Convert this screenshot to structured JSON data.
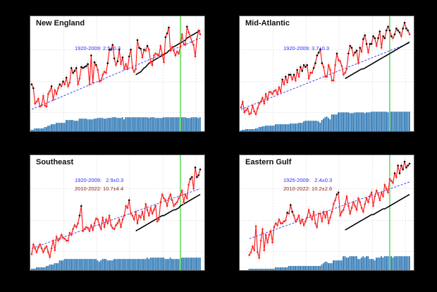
{
  "figure": {
    "background": "#000000",
    "colors": {
      "observed": "#ff2020",
      "observed_marker_highlight": "#000000",
      "trend": "#4444ff",
      "model": "#000000",
      "bars": "#2e78b5",
      "marker_2010": "#55dd55",
      "grid": "#d9d9d9"
    }
  },
  "chart_data": [
    {
      "type": "line",
      "title": "New England",
      "annotations": [
        {
          "text": "1920-2009: 2.5±0.3",
          "color": "#2b2bff"
        }
      ],
      "x_range": [
        1920,
        2022
      ],
      "vline_year": 2010,
      "grid": true,
      "series": [
        {
          "name": "observed",
          "start_year": 1920,
          "values": [
            40,
            36,
            20,
            22,
            25,
            17,
            18,
            28,
            18,
            17,
            30,
            33,
            38,
            24,
            34,
            30,
            36,
            40,
            38,
            43,
            40,
            47,
            38,
            42,
            57,
            52,
            54,
            57,
            40,
            46,
            58,
            57,
            58,
            59,
            61,
            40,
            70,
            42,
            63,
            60,
            55,
            43,
            44,
            50,
            53,
            52,
            62,
            76,
            76,
            81,
            67,
            60,
            64,
            76,
            61,
            68,
            56,
            61,
            56,
            69,
            76,
            57,
            53,
            56,
            86,
            78,
            77,
            68,
            76,
            75,
            80,
            76,
            63,
            60,
            70,
            72,
            71,
            70,
            80,
            71,
            63,
            89,
            93,
            99,
            75,
            79,
            75,
            70,
            74,
            72,
            79,
            92,
            82,
            81,
            100,
            94,
            90,
            84,
            81,
            69,
            87,
            96,
            92
          ]
        },
        {
          "name": "model",
          "start_year": 1983,
          "values": [
            50,
            51,
            52,
            53,
            55,
            57,
            58,
            60,
            62,
            63,
            64,
            65,
            66,
            67,
            68,
            69,
            70,
            71,
            72,
            73,
            75,
            76,
            78,
            79,
            80,
            81,
            82,
            83,
            84,
            85,
            86,
            88,
            89,
            90,
            91,
            92,
            93,
            94,
            95,
            96
          ]
        },
        {
          "name": "trend",
          "x": [
            1920,
            2022
          ],
          "y": [
            14,
            88
          ]
        },
        {
          "name": "count_bars",
          "start_year": 1920,
          "values": [
            2,
            2,
            4,
            4,
            4,
            4,
            4,
            4,
            6,
            6,
            8,
            8,
            10,
            10,
            10,
            12,
            12,
            12,
            12,
            12,
            12,
            16,
            16,
            16,
            16,
            16,
            15,
            15,
            15,
            18,
            18,
            18,
            18,
            18,
            17,
            17,
            17,
            17,
            18,
            18,
            19,
            19,
            19,
            19,
            18,
            18,
            19,
            19,
            19,
            20,
            20,
            20,
            19,
            19,
            19,
            20,
            17,
            20,
            20,
            20,
            20,
            20,
            20,
            20,
            20,
            20,
            20,
            20,
            20,
            20,
            20,
            19,
            20,
            20,
            20,
            19,
            19,
            19,
            19,
            19,
            20,
            20,
            20,
            20,
            20,
            20,
            20,
            20,
            20,
            20,
            20,
            20,
            20,
            20,
            19,
            19,
            19,
            20,
            20,
            20,
            20,
            19,
            20
          ]
        }
      ]
    },
    {
      "type": "line",
      "title": "Mid-Atlantic",
      "annotations": [
        {
          "text": "1920-2009: 3.7±0.3",
          "color": "#2b2bff"
        }
      ],
      "x_range": [
        1920,
        2022
      ],
      "vline_year": 2010,
      "grid": true,
      "series": [
        {
          "name": "observed",
          "start_year": 1920,
          "values": [
            16,
            22,
            11,
            13,
            15,
            9,
            10,
            18,
            12,
            9,
            15,
            20,
            22,
            26,
            20,
            30,
            24,
            32,
            32,
            30,
            33,
            34,
            30,
            37,
            32,
            45,
            40,
            48,
            42,
            50,
            50,
            45,
            50,
            44,
            55,
            48,
            58,
            54,
            60,
            58,
            60,
            46,
            52,
            52,
            57,
            62,
            70,
            73,
            76,
            62,
            58,
            48,
            48,
            60,
            55,
            44,
            44,
            60,
            72,
            65,
            64,
            59,
            50,
            52,
            56,
            72,
            80,
            78,
            70,
            73,
            75,
            62,
            78,
            74,
            87,
            91,
            82,
            73,
            82,
            82,
            90,
            88,
            80,
            88,
            95,
            78,
            90,
            88,
            96,
            100,
            96,
            90,
            88,
            92,
            98,
            96,
            94,
            90,
            98,
            104,
            98,
            96,
            92
          ]
        },
        {
          "name": "model",
          "start_year": 1983,
          "values": [
            46,
            47,
            48,
            49,
            50,
            51,
            52,
            53,
            54,
            55,
            56,
            56,
            57,
            58,
            59,
            60,
            61,
            62,
            63,
            64,
            65,
            66,
            67,
            68,
            69,
            70,
            71,
            72,
            73,
            74,
            75,
            76,
            77,
            78,
            79,
            80,
            81,
            82,
            83,
            84
          ]
        },
        {
          "name": "trend",
          "x": [
            1920,
            2022
          ],
          "y": [
            14,
            83
          ]
        },
        {
          "name": "count_bars",
          "start_year": 1920,
          "values": [
            1,
            2,
            2,
            3,
            3,
            3,
            3,
            3,
            3,
            4,
            4,
            6,
            6,
            7,
            7,
            8,
            8,
            8,
            8,
            8,
            8,
            10,
            10,
            10,
            10,
            10,
            10,
            10,
            10,
            10,
            11,
            11,
            11,
            11,
            11,
            12,
            12,
            12,
            14,
            15,
            15,
            15,
            15,
            15,
            15,
            15,
            15,
            14,
            12,
            16,
            18,
            20,
            21,
            19,
            17,
            24,
            24,
            24,
            24,
            27,
            27,
            27,
            27,
            27,
            27,
            27,
            26,
            26,
            26,
            27,
            27,
            27,
            27,
            27,
            27,
            26,
            27,
            27,
            27,
            28,
            28,
            28,
            28,
            28,
            28,
            28,
            28,
            28,
            28,
            27,
            28,
            28,
            28,
            28,
            28,
            28,
            28,
            28,
            28,
            28,
            28,
            28,
            28
          ]
        }
      ]
    },
    {
      "type": "line",
      "title": "Southeast",
      "annotations": [
        {
          "text": "1920-2009:   2.9±0.3",
          "color": "#2b2bff"
        },
        {
          "text": "2010-2022: 10.7±4.4",
          "color": "#8b1a1a"
        }
      ],
      "x_range": [
        1920,
        2022
      ],
      "vline_year": 2010,
      "grid": true,
      "series": [
        {
          "name": "observed",
          "start_year": 1920,
          "values": [
            8,
            18,
            14,
            10,
            15,
            18,
            14,
            10,
            14,
            16,
            10,
            5,
            14,
            22,
            12,
            26,
            22,
            24,
            28,
            25,
            24,
            22,
            22,
            30,
            28,
            34,
            38,
            36,
            40,
            48,
            58,
            32,
            34,
            36,
            35,
            32,
            38,
            33,
            40,
            45,
            44,
            38,
            34,
            46,
            36,
            44,
            40,
            48,
            38,
            35,
            34,
            38,
            40,
            44,
            36,
            44,
            48,
            58,
            56,
            64,
            50,
            48,
            44,
            52,
            40,
            48,
            46,
            52,
            44,
            60,
            54,
            48,
            56,
            50,
            54,
            58,
            42,
            44,
            62,
            70,
            66,
            64,
            58,
            66,
            70,
            64,
            58,
            60,
            62,
            66,
            69,
            74,
            62,
            70,
            66,
            80,
            86,
            88,
            76,
            98,
            88,
            90,
            96
          ]
        },
        {
          "name": "model",
          "start_year": 1983,
          "values": [
            32,
            33,
            34,
            35,
            36,
            37,
            38,
            39,
            40,
            41,
            42,
            43,
            44,
            45,
            46,
            47,
            48,
            48,
            49,
            50,
            51,
            52,
            53,
            54,
            54,
            55,
            56,
            58,
            59,
            60,
            61,
            62,
            63,
            64,
            65,
            66,
            67,
            68,
            69,
            70
          ]
        },
        {
          "name": "trend",
          "x": [
            1920,
            2022
          ],
          "y": [
            14,
            76
          ]
        },
        {
          "name": "count_bars",
          "start_year": 1920,
          "values": [
            2,
            2,
            2,
            4,
            4,
            4,
            4,
            4,
            4,
            6,
            6,
            8,
            8,
            8,
            10,
            10,
            10,
            14,
            14,
            14,
            16,
            16,
            16,
            16,
            16,
            16,
            16,
            16,
            16,
            16,
            16,
            16,
            16,
            16,
            16,
            16,
            16,
            16,
            16,
            16,
            14,
            12,
            14,
            16,
            16,
            16,
            14,
            14,
            14,
            14,
            16,
            16,
            16,
            16,
            16,
            16,
            16,
            16,
            16,
            16,
            16,
            16,
            16,
            16,
            16,
            16,
            16,
            16,
            16,
            16,
            18,
            16,
            18,
            18,
            18,
            18,
            18,
            18,
            18,
            18,
            18,
            16,
            16,
            16,
            18,
            16,
            16,
            16,
            16,
            16,
            16,
            18,
            18,
            18,
            18,
            18,
            18,
            18,
            18,
            18,
            18,
            18,
            18
          ]
        }
      ]
    },
    {
      "type": "line",
      "title": "Eastern Gulf",
      "annotations": [
        {
          "text": "1925-2009:   2.4±0.3",
          "color": "#2b2bff"
        },
        {
          "text": "2010-2022: 10.2±2.6",
          "color": "#8b1a1a"
        }
      ],
      "x_range": [
        1920,
        2022
      ],
      "vline_year": 2010,
      "grid": true,
      "series": [
        {
          "name": "observed",
          "start_year": 1925,
          "values": [
            7,
            10,
            16,
            12,
            37,
            10,
            4,
            22,
            34,
            12,
            28,
            20,
            28,
            32,
            20,
            36,
            40,
            38,
            44,
            40,
            40,
            42,
            43,
            51,
            50,
            59,
            52,
            48,
            42,
            44,
            48,
            40,
            44,
            38,
            42,
            46,
            54,
            48,
            44,
            52,
            40,
            36,
            50,
            50,
            42,
            52,
            46,
            52,
            40,
            46,
            52,
            60,
            64,
            70,
            72,
            48,
            52,
            54,
            60,
            68,
            58,
            50,
            56,
            62,
            58,
            54,
            66,
            62,
            56,
            52,
            60,
            66,
            62,
            68,
            72,
            58,
            68,
            74,
            70,
            64,
            72,
            68,
            80,
            76,
            72,
            86,
            84,
            82,
            92,
            88,
            100,
            92,
            100,
            96,
            104,
            98,
            100,
            102
          ]
        },
        {
          "name": "model",
          "start_year": 1983,
          "values": [
            33,
            34,
            35,
            36,
            37,
            38,
            39,
            40,
            41,
            42,
            43,
            44,
            45,
            46,
            47,
            48,
            49,
            49,
            50,
            51,
            52,
            53,
            54,
            55,
            55,
            56,
            57,
            58,
            59,
            60,
            61,
            62,
            63,
            64,
            65,
            66,
            67,
            68,
            69,
            70
          ]
        },
        {
          "name": "trend",
          "x": [
            1925,
            2022
          ],
          "y": [
            24,
            83
          ]
        },
        {
          "name": "count_bars",
          "start_year": 1925,
          "values": [
            2,
            2,
            2,
            2,
            2,
            2,
            2,
            2,
            2,
            2,
            2,
            2,
            2,
            2,
            2,
            2,
            4,
            4,
            4,
            4,
            4,
            4,
            4,
            4,
            6,
            6,
            6,
            6,
            6,
            6,
            6,
            6,
            6,
            6,
            6,
            6,
            6,
            6,
            6,
            6,
            6,
            6,
            6,
            6,
            8,
            10,
            12,
            12,
            10,
            10,
            10,
            14,
            14,
            14,
            14,
            14,
            14,
            20,
            20,
            18,
            18,
            20,
            20,
            20,
            20,
            20,
            16,
            16,
            18,
            20,
            18,
            20,
            20,
            16,
            16,
            16,
            14,
            18,
            18,
            18,
            20,
            18,
            20,
            20,
            20,
            20,
            20,
            18,
            20,
            20,
            20,
            20,
            20,
            20,
            20,
            20,
            20,
            20
          ]
        }
      ]
    }
  ]
}
